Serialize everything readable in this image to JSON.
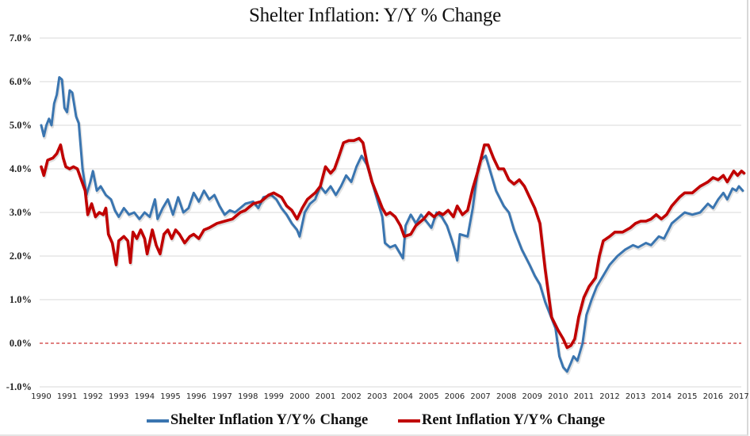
{
  "chart_data": {
    "type": "line",
    "title": "Shelter Inflation: Y/Y % Change",
    "xlabel": "",
    "ylabel": "",
    "xlim": [
      1989.95,
      2017.25
    ],
    "ylim": [
      -1.0,
      7.0
    ],
    "grid": true,
    "legend_position": "bottom",
    "ytick_values": [
      -1,
      0,
      1,
      2,
      3,
      4,
      5,
      6,
      7
    ],
    "ytick_labels": [
      "-1.0%",
      "0.0%",
      "1.0%",
      "2.0%",
      "3.0%",
      "4.0%",
      "5.0%",
      "6.0%",
      "7.0%"
    ],
    "xtick_labels": [
      "1990",
      "1991",
      "1992",
      "1993",
      "1994",
      "1995",
      "1996",
      "1997",
      "1998",
      "1999",
      "2000",
      "2001",
      "2002",
      "2003",
      "2004",
      "2005",
      "2006",
      "2007",
      "2008",
      "2009",
      "2010",
      "2011",
      "2012",
      "2013",
      "2014",
      "2015",
      "2016",
      "2017"
    ],
    "reference_line": {
      "y": 0.0,
      "style": "dashed",
      "color": "#c00000"
    },
    "series": [
      {
        "name": "Shelter Inflation Y/Y% Change",
        "color": "#3a75b0",
        "x": [
          1990.0,
          1990.1,
          1990.2,
          1990.3,
          1990.4,
          1990.5,
          1990.6,
          1990.7,
          1990.8,
          1990.9,
          1991.0,
          1991.1,
          1991.2,
          1991.35,
          1991.45,
          1991.6,
          1991.75,
          1991.9,
          1992.0,
          1992.15,
          1992.3,
          1992.5,
          1992.7,
          1992.85,
          1993.0,
          1993.2,
          1993.4,
          1993.6,
          1993.8,
          1994.0,
          1994.2,
          1994.4,
          1994.5,
          1994.7,
          1994.9,
          1995.1,
          1995.3,
          1995.5,
          1995.7,
          1995.9,
          1996.1,
          1996.3,
          1996.5,
          1996.7,
          1996.9,
          1997.1,
          1997.3,
          1997.5,
          1997.7,
          1997.9,
          1998.2,
          1998.4,
          1998.6,
          1998.9,
          1999.1,
          1999.3,
          1999.5,
          1999.7,
          1999.9,
          2000.0,
          2000.2,
          2000.4,
          2000.6,
          2000.8,
          2001.0,
          2001.2,
          2001.4,
          2001.6,
          2001.8,
          2002.0,
          2002.2,
          2002.4,
          2002.6,
          2002.8,
          2003.0,
          2003.2,
          2003.3,
          2003.5,
          2003.7,
          2003.9,
          2004.0,
          2004.1,
          2004.3,
          2004.5,
          2004.7,
          2004.9,
          2005.1,
          2005.3,
          2005.5,
          2005.7,
          2005.9,
          2006.0,
          2006.1,
          2006.2,
          2006.5,
          2006.7,
          2006.9,
          2007.0,
          2007.2,
          2007.4,
          2007.6,
          2007.9,
          2008.1,
          2008.3,
          2008.6,
          2008.9,
          2009.1,
          2009.3,
          2009.5,
          2009.7,
          2009.9,
          2010.05,
          2010.2,
          2010.35,
          2010.5,
          2010.6,
          2010.75,
          2010.95,
          2011.1,
          2011.3,
          2011.5,
          2011.8,
          2012.0,
          2012.3,
          2012.6,
          2012.9,
          2013.1,
          2013.4,
          2013.6,
          2013.9,
          2014.1,
          2014.4,
          2014.7,
          2014.9,
          2015.2,
          2015.5,
          2015.8,
          2016.0,
          2016.2,
          2016.4,
          2016.55,
          2016.75,
          2016.9,
          2017.0,
          2017.15
        ],
        "values": [
          5.0,
          4.75,
          5.0,
          5.15,
          5.0,
          5.5,
          5.7,
          6.1,
          6.05,
          5.4,
          5.3,
          5.8,
          5.75,
          5.2,
          5.05,
          4.0,
          3.4,
          3.7,
          3.95,
          3.5,
          3.6,
          3.4,
          3.3,
          3.05,
          2.9,
          3.1,
          2.95,
          3.0,
          2.85,
          3.0,
          2.9,
          3.3,
          2.85,
          3.1,
          3.3,
          2.95,
          3.35,
          3.0,
          3.1,
          3.45,
          3.25,
          3.5,
          3.3,
          3.4,
          3.15,
          2.95,
          3.05,
          3.0,
          3.1,
          3.2,
          3.25,
          3.1,
          3.35,
          3.4,
          3.3,
          3.1,
          2.95,
          2.75,
          2.6,
          2.45,
          3.0,
          3.2,
          3.3,
          3.6,
          3.45,
          3.6,
          3.4,
          3.6,
          3.85,
          3.7,
          4.05,
          4.3,
          4.1,
          3.7,
          3.3,
          2.9,
          2.3,
          2.2,
          2.25,
          2.05,
          1.95,
          2.7,
          2.95,
          2.75,
          2.95,
          2.8,
          2.65,
          3.0,
          2.9,
          2.7,
          2.35,
          2.15,
          1.9,
          2.5,
          2.45,
          3.1,
          4.0,
          4.2,
          4.3,
          3.9,
          3.5,
          3.15,
          3.0,
          2.6,
          2.15,
          1.8,
          1.55,
          1.35,
          0.95,
          0.65,
          0.35,
          -0.3,
          -0.55,
          -0.65,
          -0.45,
          -0.3,
          -0.4,
          0.0,
          0.65,
          1.0,
          1.3,
          1.6,
          1.8,
          2.0,
          2.15,
          2.25,
          2.2,
          2.3,
          2.25,
          2.45,
          2.4,
          2.75,
          2.9,
          3.0,
          2.95,
          3.0,
          3.2,
          3.1,
          3.3,
          3.45,
          3.3,
          3.55,
          3.5,
          3.6,
          3.5
        ]
      },
      {
        "name": "Rent Inflation Y/Y% Change",
        "color": "#c00000",
        "x": [
          1990.0,
          1990.1,
          1990.25,
          1990.45,
          1990.6,
          1990.75,
          1990.85,
          1990.95,
          1991.1,
          1991.25,
          1991.4,
          1991.55,
          1991.7,
          1991.8,
          1991.95,
          1992.1,
          1992.25,
          1992.4,
          1992.5,
          1992.6,
          1992.75,
          1992.9,
          1993.0,
          1993.2,
          1993.35,
          1993.45,
          1993.55,
          1993.7,
          1993.85,
          1994.0,
          1994.1,
          1994.3,
          1994.45,
          1994.6,
          1994.75,
          1994.9,
          1995.05,
          1995.2,
          1995.35,
          1995.55,
          1995.75,
          1995.9,
          1996.1,
          1996.3,
          1996.5,
          1996.8,
          1997.1,
          1997.4,
          1997.7,
          1997.9,
          1998.2,
          1998.5,
          1998.8,
          1999.0,
          1999.3,
          1999.5,
          1999.7,
          1999.9,
          2000.1,
          2000.3,
          2000.6,
          2000.8,
          2001.0,
          2001.2,
          2001.35,
          2001.5,
          2001.7,
          2001.9,
          2002.1,
          2002.3,
          2002.45,
          2002.6,
          2002.8,
          2003.0,
          2003.2,
          2003.35,
          2003.5,
          2003.7,
          2003.9,
          2004.05,
          2004.3,
          2004.5,
          2004.8,
          2005.0,
          2005.2,
          2005.4,
          2005.55,
          2005.75,
          2005.95,
          2006.1,
          2006.3,
          2006.5,
          2006.7,
          2006.9,
          2007.15,
          2007.3,
          2007.5,
          2007.7,
          2007.9,
          2008.1,
          2008.3,
          2008.5,
          2008.7,
          2008.9,
          2009.1,
          2009.3,
          2009.5,
          2009.75,
          2010.0,
          2010.2,
          2010.35,
          2010.5,
          2010.65,
          2010.8,
          2011.0,
          2011.2,
          2011.45,
          2011.6,
          2011.75,
          2012.0,
          2012.2,
          2012.5,
          2012.8,
          2013.0,
          2013.2,
          2013.4,
          2013.6,
          2013.8,
          2014.0,
          2014.2,
          2014.4,
          2014.7,
          2014.9,
          2015.2,
          2015.5,
          2015.8,
          2016.0,
          2016.2,
          2016.4,
          2016.55,
          2016.8,
          2016.95,
          2017.1,
          2017.2
        ],
        "values": [
          4.05,
          3.85,
          4.2,
          4.25,
          4.35,
          4.55,
          4.25,
          4.05,
          4.0,
          4.05,
          4.0,
          3.75,
          3.5,
          2.95,
          3.2,
          2.9,
          3.0,
          2.95,
          3.1,
          2.5,
          2.3,
          1.8,
          2.35,
          2.45,
          2.35,
          1.85,
          2.55,
          2.4,
          2.6,
          2.4,
          2.05,
          2.6,
          2.25,
          2.05,
          2.5,
          2.6,
          2.4,
          2.6,
          2.5,
          2.3,
          2.45,
          2.5,
          2.4,
          2.6,
          2.65,
          2.75,
          2.8,
          2.85,
          3.0,
          3.05,
          3.2,
          3.25,
          3.4,
          3.45,
          3.35,
          3.15,
          3.05,
          2.85,
          3.1,
          3.3,
          3.45,
          3.6,
          4.05,
          3.9,
          4.0,
          4.25,
          4.6,
          4.65,
          4.65,
          4.7,
          4.6,
          4.15,
          3.7,
          3.4,
          3.1,
          2.95,
          3.0,
          2.9,
          2.7,
          2.45,
          2.5,
          2.7,
          2.85,
          3.0,
          2.9,
          3.0,
          2.95,
          3.05,
          2.9,
          3.15,
          2.95,
          3.05,
          3.55,
          3.95,
          4.55,
          4.55,
          4.25,
          4.0,
          4.0,
          3.75,
          3.65,
          3.75,
          3.6,
          3.35,
          3.1,
          2.75,
          1.7,
          0.6,
          0.3,
          0.1,
          -0.1,
          -0.05,
          0.1,
          0.6,
          1.05,
          1.3,
          1.5,
          2.0,
          2.35,
          2.45,
          2.55,
          2.55,
          2.65,
          2.75,
          2.8,
          2.8,
          2.85,
          2.95,
          2.85,
          2.95,
          3.15,
          3.35,
          3.45,
          3.45,
          3.6,
          3.7,
          3.8,
          3.75,
          3.85,
          3.7,
          3.95,
          3.85,
          3.95,
          3.9
        ]
      }
    ]
  }
}
